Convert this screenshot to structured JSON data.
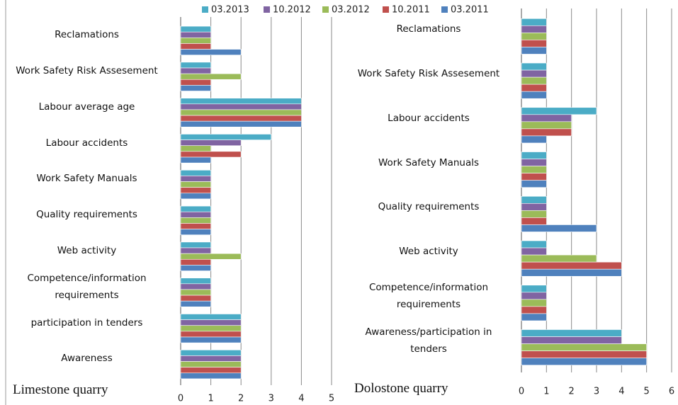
{
  "chart_data": [
    {
      "type": "bar",
      "orientation": "horizontal",
      "title": "Limestone quarry",
      "categories": [
        "Reclamations",
        "Work Safety Risk Assesement",
        "Labour average age",
        "Labour accidents",
        "Work Safety Manuals",
        "Quality requirements",
        "Web activity",
        "Competence/information requirements",
        "participation in tenders",
        "Awareness"
      ],
      "series": [
        {
          "name": "03.2013",
          "color": "#4bacc6",
          "values": [
            1,
            1,
            4,
            3,
            1,
            1,
            1,
            1,
            2,
            2
          ]
        },
        {
          "name": "10.2012",
          "color": "#8064a2",
          "values": [
            1,
            1,
            4,
            2,
            1,
            1,
            1,
            1,
            2,
            2
          ]
        },
        {
          "name": "03.2012",
          "color": "#9bbb59",
          "values": [
            1,
            2,
            4,
            1,
            1,
            1,
            2,
            1,
            2,
            2
          ]
        },
        {
          "name": "10.2011",
          "color": "#c0504d",
          "values": [
            1,
            1,
            4,
            2,
            1,
            1,
            1,
            1,
            2,
            2
          ]
        },
        {
          "name": "03.2011",
          "color": "#4f81bd",
          "values": [
            2,
            1,
            4,
            1,
            1,
            1,
            1,
            1,
            2,
            2
          ]
        }
      ],
      "xlim": [
        0,
        5
      ],
      "xticks": [
        0,
        1,
        2,
        3,
        4,
        5
      ],
      "grid": true
    },
    {
      "type": "bar",
      "orientation": "horizontal",
      "title": "Dolostone quarry",
      "categories": [
        "Reclamations",
        "Work Safety Risk Assesement",
        "Labour accidents",
        "Work Safety Manuals",
        "Quality requirements",
        "Web activity",
        "Competence/information requirements",
        "Awareness/participation in tenders"
      ],
      "series": [
        {
          "color": "#4bacc6",
          "values": [
            1,
            1,
            3,
            1,
            1,
            1,
            1,
            4
          ]
        },
        {
          "color": "#8064a2",
          "values": [
            1,
            1,
            2,
            1,
            1,
            1,
            1,
            4
          ]
        },
        {
          "color": "#9bbb59",
          "values": [
            1,
            1,
            2,
            1,
            1,
            3,
            1,
            5
          ]
        },
        {
          "color": "#c0504d",
          "values": [
            1,
            1,
            2,
            1,
            1,
            4,
            1,
            5
          ]
        },
        {
          "color": "#4f81bd",
          "values": [
            1,
            1,
            1,
            1,
            3,
            4,
            1,
            5
          ]
        }
      ],
      "xlim": [
        0,
        6
      ],
      "xticks": [
        0,
        1,
        2,
        3,
        4,
        5,
        6
      ],
      "grid": true
    }
  ]
}
